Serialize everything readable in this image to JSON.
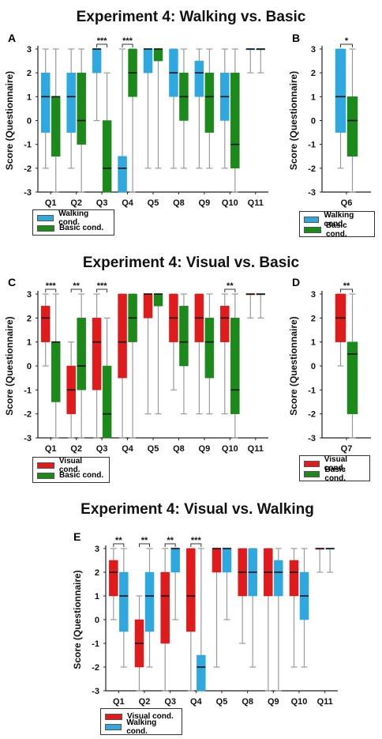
{
  "colors": {
    "walking": "#2fa8e0",
    "basic": "#1b8a1b",
    "visual": "#e01b1b",
    "whisker": "#9a9a9a",
    "median": "#111111"
  },
  "titles": {
    "t1": "Experiment 4: Walking vs. Basic",
    "t2": "Experiment 4: Visual vs. Basic",
    "t3": "Experiment 4: Visual vs. Walking"
  },
  "ylabel": "Score (Questionnaire)",
  "legends": {
    "L1": [
      {
        "label": "Walking cond.",
        "color": "#2fa8e0"
      },
      {
        "label": "Basic cond.",
        "color": "#1b8a1b"
      }
    ],
    "L2": [
      {
        "label": "Walking cond.",
        "color": "#2fa8e0"
      },
      {
        "label": "Basic cond.",
        "color": "#1b8a1b"
      }
    ],
    "L3": [
      {
        "label": "Visual cond.",
        "color": "#e01b1b"
      },
      {
        "label": "Basic cond.",
        "color": "#1b8a1b"
      }
    ],
    "L4": [
      {
        "label": "Visual cond.",
        "color": "#e01b1b"
      },
      {
        "label": "Basic cond.",
        "color": "#1b8a1b"
      }
    ],
    "L5": [
      {
        "label": "Visual cond.",
        "color": "#e01b1b"
      },
      {
        "label": "Walking cond.",
        "color": "#2fa8e0"
      }
    ]
  },
  "chart_data": [
    {
      "panel": "A",
      "type": "box",
      "title": "Experiment 4: Walking vs. Basic",
      "ylabel": "Score (Questionnaire)",
      "ylim": [
        -3,
        3
      ],
      "yticks": [
        3,
        2,
        1,
        0,
        -1,
        -2,
        -3
      ],
      "categories": [
        "Q1",
        "Q2",
        "Q3",
        "Q4",
        "Q5",
        "Q8",
        "Q9",
        "Q10",
        "Q11"
      ],
      "series": [
        {
          "name": "Walking cond.",
          "color": "#2fa8e0",
          "boxes": [
            {
              "min": -2,
              "q1": -0.5,
              "median": 1,
              "q3": 2,
              "max": 3
            },
            {
              "min": -2,
              "q1": -0.5,
              "median": 1,
              "q3": 2,
              "max": 3
            },
            {
              "min": 0,
              "q1": 2,
              "median": 3,
              "q3": 3,
              "max": 3
            },
            {
              "min": -3,
              "q1": -3,
              "median": -2,
              "q3": -1.5,
              "max": 3
            },
            {
              "min": -2,
              "q1": 2,
              "median": 3,
              "q3": 3,
              "max": 3
            },
            {
              "min": -2,
              "q1": 1,
              "median": 2,
              "q3": 3,
              "max": 3
            },
            {
              "min": -2,
              "q1": 1,
              "median": 2,
              "q3": 2.5,
              "max": 3
            },
            {
              "min": -2,
              "q1": 0,
              "median": 1,
              "q3": 2,
              "max": 3
            },
            {
              "min": 2,
              "q1": 3,
              "median": 3,
              "q3": 3,
              "max": 3
            }
          ]
        },
        {
          "name": "Basic cond.",
          "color": "#1b8a1b",
          "boxes": [
            {
              "min": -3,
              "q1": -1.5,
              "median": 1,
              "q3": 1,
              "max": 3
            },
            {
              "min": -3,
              "q1": -1,
              "median": 0,
              "q3": 2,
              "max": 3
            },
            {
              "min": -3,
              "q1": -3,
              "median": -2,
              "q3": 0,
              "max": 2
            },
            {
              "min": -3,
              "q1": 1,
              "median": 2,
              "q3": 3,
              "max": 3
            },
            {
              "min": -2,
              "q1": 2.5,
              "median": 3,
              "q3": 3,
              "max": 3
            },
            {
              "min": -2,
              "q1": 0,
              "median": 1,
              "q3": 2,
              "max": 3
            },
            {
              "min": -2,
              "q1": -0.5,
              "median": 1,
              "q3": 2,
              "max": 3
            },
            {
              "min": -3,
              "q1": -2,
              "median": -1,
              "q3": 2,
              "max": 3
            },
            {
              "min": 2,
              "q1": 3,
              "median": 3,
              "q3": 3,
              "max": 3
            }
          ]
        }
      ],
      "significance": [
        {
          "category": "Q3",
          "label": "***"
        },
        {
          "category": "Q4",
          "label": "***"
        }
      ]
    },
    {
      "panel": "B",
      "type": "box",
      "ylabel": "Score (Questionnaire)",
      "ylim": [
        -3,
        3
      ],
      "yticks": [
        3,
        2,
        1,
        0,
        -1,
        -2,
        -3
      ],
      "categories": [
        "Q6"
      ],
      "series": [
        {
          "name": "Walking cond.",
          "color": "#2fa8e0",
          "boxes": [
            {
              "min": -2,
              "q1": -0.5,
              "median": 1,
              "q3": 3,
              "max": 3
            }
          ]
        },
        {
          "name": "Basic cond.",
          "color": "#1b8a1b",
          "boxes": [
            {
              "min": -3,
              "q1": -1.5,
              "median": 0,
              "q3": 1,
              "max": 3
            }
          ]
        }
      ],
      "significance": [
        {
          "category": "Q6",
          "label": "*"
        }
      ]
    },
    {
      "panel": "C",
      "type": "box",
      "title": "Experiment 4: Visual vs. Basic",
      "ylabel": "Score (Questionnaire)",
      "ylim": [
        -3,
        3
      ],
      "yticks": [
        3,
        2,
        1,
        0,
        -1,
        -2,
        -3
      ],
      "categories": [
        "Q1",
        "Q2",
        "Q3",
        "Q4",
        "Q5",
        "Q8",
        "Q9",
        "Q10",
        "Q11"
      ],
      "series": [
        {
          "name": "Visual cond.",
          "color": "#e01b1b",
          "boxes": [
            {
              "min": 0,
              "q1": 1,
              "median": 2,
              "q3": 2.5,
              "max": 3
            },
            {
              "min": -3,
              "q1": -2,
              "median": -1,
              "q3": 0,
              "max": 1
            },
            {
              "min": -3,
              "q1": -1,
              "median": 1,
              "q3": 2,
              "max": 3
            },
            {
              "min": -3,
              "q1": -0.5,
              "median": 1,
              "q3": 3,
              "max": 3
            },
            {
              "min": -2,
              "q1": 2,
              "median": 3,
              "q3": 3,
              "max": 3
            },
            {
              "min": -1,
              "q1": 1,
              "median": 2,
              "q3": 3,
              "max": 3
            },
            {
              "min": -2,
              "q1": 1,
              "median": 2,
              "q3": 3,
              "max": 3
            },
            {
              "min": -2,
              "q1": 1,
              "median": 2,
              "q3": 2.5,
              "max": 3
            },
            {
              "min": 2,
              "q1": 3,
              "median": 3,
              "q3": 3,
              "max": 3
            }
          ]
        },
        {
          "name": "Basic cond.",
          "color": "#1b8a1b",
          "boxes": [
            {
              "min": -3,
              "q1": -1.5,
              "median": 1,
              "q3": 1,
              "max": 3
            },
            {
              "min": -3,
              "q1": -1,
              "median": 0,
              "q3": 2,
              "max": 3
            },
            {
              "min": -3,
              "q1": -3,
              "median": -2,
              "q3": 0,
              "max": 2
            },
            {
              "min": -3,
              "q1": 1,
              "median": 2,
              "q3": 3,
              "max": 3
            },
            {
              "min": -2,
              "q1": 2.5,
              "median": 3,
              "q3": 3,
              "max": 3
            },
            {
              "min": -2,
              "q1": 0,
              "median": 1,
              "q3": 2.5,
              "max": 3
            },
            {
              "min": -2,
              "q1": -0.5,
              "median": 1,
              "q3": 2,
              "max": 3
            },
            {
              "min": -3,
              "q1": -2,
              "median": -1,
              "q3": 2,
              "max": 3
            },
            {
              "min": 2,
              "q1": 3,
              "median": 3,
              "q3": 3,
              "max": 3
            }
          ]
        }
      ],
      "significance": [
        {
          "category": "Q1",
          "label": "***"
        },
        {
          "category": "Q2",
          "label": "**"
        },
        {
          "category": "Q3",
          "label": "***"
        },
        {
          "category": "Q10",
          "label": "**"
        }
      ]
    },
    {
      "panel": "D",
      "type": "box",
      "ylabel": "Score (Questionnaire)",
      "ylim": [
        -3,
        3
      ],
      "yticks": [
        3,
        2,
        1,
        0,
        -1,
        -2,
        -3
      ],
      "categories": [
        "Q7"
      ],
      "series": [
        {
          "name": "Visual cond.",
          "color": "#e01b1b",
          "boxes": [
            {
              "min": 0,
              "q1": 1,
              "median": 2,
              "q3": 3,
              "max": 3
            }
          ]
        },
        {
          "name": "Basic cond.",
          "color": "#1b8a1b",
          "boxes": [
            {
              "min": -3,
              "q1": -2,
              "median": 0.5,
              "q3": 1,
              "max": 3
            }
          ]
        }
      ],
      "significance": [
        {
          "category": "Q7",
          "label": "**"
        }
      ]
    },
    {
      "panel": "E",
      "type": "box",
      "title": "Experiment 4: Visual vs. Walking",
      "ylabel": "Score (Questionnaire)",
      "ylim": [
        -3,
        3
      ],
      "yticks": [
        3,
        2,
        1,
        0,
        -1,
        -2,
        -3
      ],
      "categories": [
        "Q1",
        "Q2",
        "Q3",
        "Q4",
        "Q5",
        "Q8",
        "Q9",
        "Q10",
        "Q11"
      ],
      "series": [
        {
          "name": "Visual cond.",
          "color": "#e01b1b",
          "boxes": [
            {
              "min": 0,
              "q1": 1,
              "median": 2,
              "q3": 2.5,
              "max": 3
            },
            {
              "min": -3,
              "q1": -2,
              "median": -1,
              "q3": 0,
              "max": 1
            },
            {
              "min": -3,
              "q1": -1,
              "median": 1,
              "q3": 2,
              "max": 3
            },
            {
              "min": -3,
              "q1": -0.5,
              "median": 1,
              "q3": 3,
              "max": 3
            },
            {
              "min": -2,
              "q1": 2,
              "median": 3,
              "q3": 3,
              "max": 3
            },
            {
              "min": -1,
              "q1": 1,
              "median": 2,
              "q3": 3,
              "max": 3
            },
            {
              "min": -3,
              "q1": 1,
              "median": 2,
              "q3": 3,
              "max": 3
            },
            {
              "min": -2,
              "q1": 1,
              "median": 2,
              "q3": 2.5,
              "max": 3
            },
            {
              "min": 2,
              "q1": 3,
              "median": 3,
              "q3": 3,
              "max": 3
            }
          ]
        },
        {
          "name": "Walking cond.",
          "color": "#2fa8e0",
          "boxes": [
            {
              "min": -2,
              "q1": -0.5,
              "median": 1,
              "q3": 2,
              "max": 3
            },
            {
              "min": -2,
              "q1": -0.5,
              "median": 1,
              "q3": 2,
              "max": 3
            },
            {
              "min": 0,
              "q1": 2,
              "median": 3,
              "q3": 3,
              "max": 3
            },
            {
              "min": -3,
              "q1": -3,
              "median": -2,
              "q3": -1.5,
              "max": 3
            },
            {
              "min": 0,
              "q1": 2,
              "median": 3,
              "q3": 3,
              "max": 3
            },
            {
              "min": -2,
              "q1": 1,
              "median": 2,
              "q3": 3,
              "max": 3
            },
            {
              "min": -3,
              "q1": 1,
              "median": 2,
              "q3": 2.5,
              "max": 3
            },
            {
              "min": -2,
              "q1": 0,
              "median": 1,
              "q3": 2,
              "max": 3
            },
            {
              "min": 2,
              "q1": 3,
              "median": 3,
              "q3": 3,
              "max": 3
            }
          ]
        }
      ],
      "significance": [
        {
          "category": "Q1",
          "label": "**"
        },
        {
          "category": "Q2",
          "label": "**"
        },
        {
          "category": "Q3",
          "label": "**"
        },
        {
          "category": "Q4",
          "label": "***"
        }
      ]
    }
  ]
}
